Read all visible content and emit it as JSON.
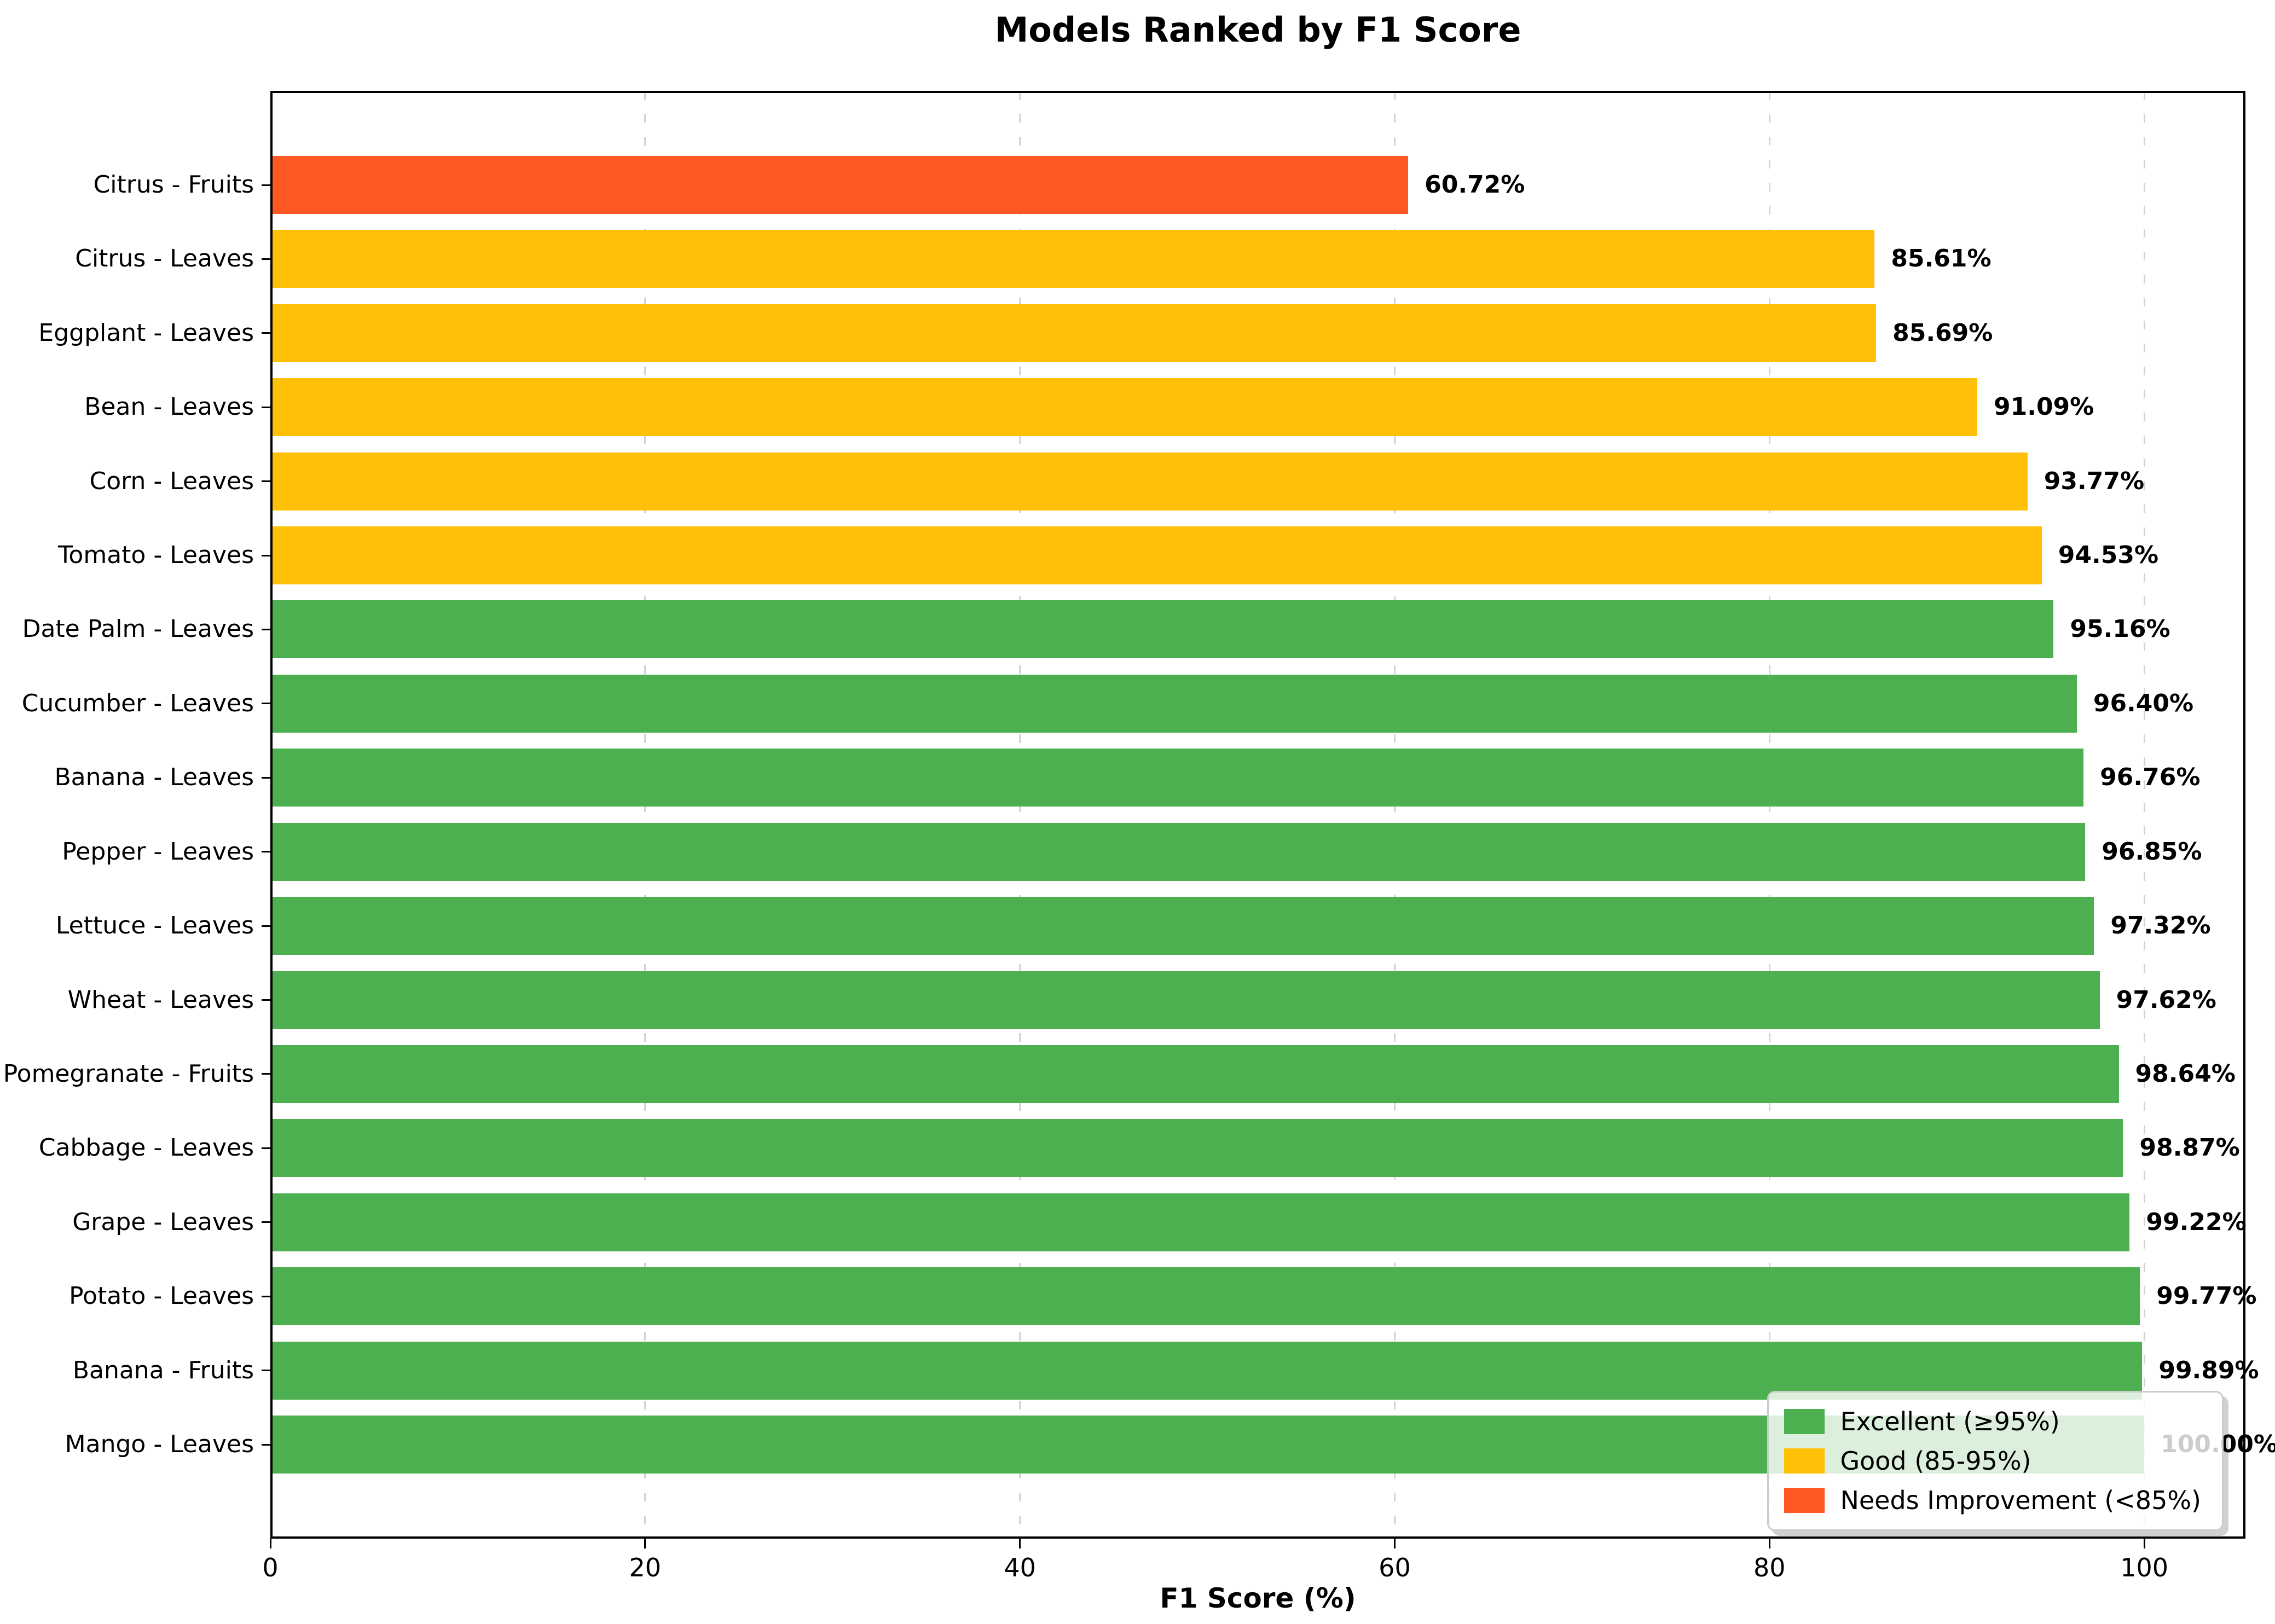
{
  "chart_data": {
    "type": "bar",
    "orientation": "horizontal",
    "title": "Models Ranked by F1 Score",
    "xlabel": "F1 Score (%)",
    "xlim": [
      0,
      105.4
    ],
    "xticks": [
      0,
      20,
      40,
      60,
      80,
      100
    ],
    "grid": "vertical-dashed",
    "legend_position": "lower-right",
    "palette": {
      "excellent": "#4caf50",
      "good": "#ffc107",
      "needs_improvement": "#ff5722"
    },
    "items": [
      {
        "label": "Citrus - Fruits",
        "value": 60.72,
        "display": "60.72%",
        "band": "needs_improvement"
      },
      {
        "label": "Citrus - Leaves",
        "value": 85.61,
        "display": "85.61%",
        "band": "good"
      },
      {
        "label": "Eggplant - Leaves",
        "value": 85.69,
        "display": "85.69%",
        "band": "good"
      },
      {
        "label": "Bean - Leaves",
        "value": 91.09,
        "display": "91.09%",
        "band": "good"
      },
      {
        "label": "Corn - Leaves",
        "value": 93.77,
        "display": "93.77%",
        "band": "good"
      },
      {
        "label": "Tomato - Leaves",
        "value": 94.53,
        "display": "94.53%",
        "band": "good"
      },
      {
        "label": "Date Palm - Leaves",
        "value": 95.16,
        "display": "95.16%",
        "band": "excellent"
      },
      {
        "label": "Cucumber - Leaves",
        "value": 96.4,
        "display": "96.40%",
        "band": "excellent"
      },
      {
        "label": "Banana - Leaves",
        "value": 96.76,
        "display": "96.76%",
        "band": "excellent"
      },
      {
        "label": "Pepper - Leaves",
        "value": 96.85,
        "display": "96.85%",
        "band": "excellent"
      },
      {
        "label": "Lettuce - Leaves",
        "value": 97.32,
        "display": "97.32%",
        "band": "excellent"
      },
      {
        "label": "Wheat - Leaves",
        "value": 97.62,
        "display": "97.62%",
        "band": "excellent"
      },
      {
        "label": "Pomegranate - Fruits",
        "value": 98.64,
        "display": "98.64%",
        "band": "excellent"
      },
      {
        "label": "Cabbage - Leaves",
        "value": 98.87,
        "display": "98.87%",
        "band": "excellent"
      },
      {
        "label": "Grape - Leaves",
        "value": 99.22,
        "display": "99.22%",
        "band": "excellent"
      },
      {
        "label": "Potato - Leaves",
        "value": 99.77,
        "display": "99.77%",
        "band": "excellent"
      },
      {
        "label": "Banana - Fruits",
        "value": 99.89,
        "display": "99.89%",
        "band": "excellent"
      },
      {
        "label": "Mango - Leaves",
        "value": 100.0,
        "display": "100.00%",
        "band": "excellent"
      }
    ],
    "legend": [
      {
        "label": "Excellent (≥95%)",
        "color": "#4caf50"
      },
      {
        "label": "Good (85-95%)",
        "color": "#ffc107"
      },
      {
        "label": "Needs Improvement (<85%)",
        "color": "#ff5722"
      }
    ]
  }
}
